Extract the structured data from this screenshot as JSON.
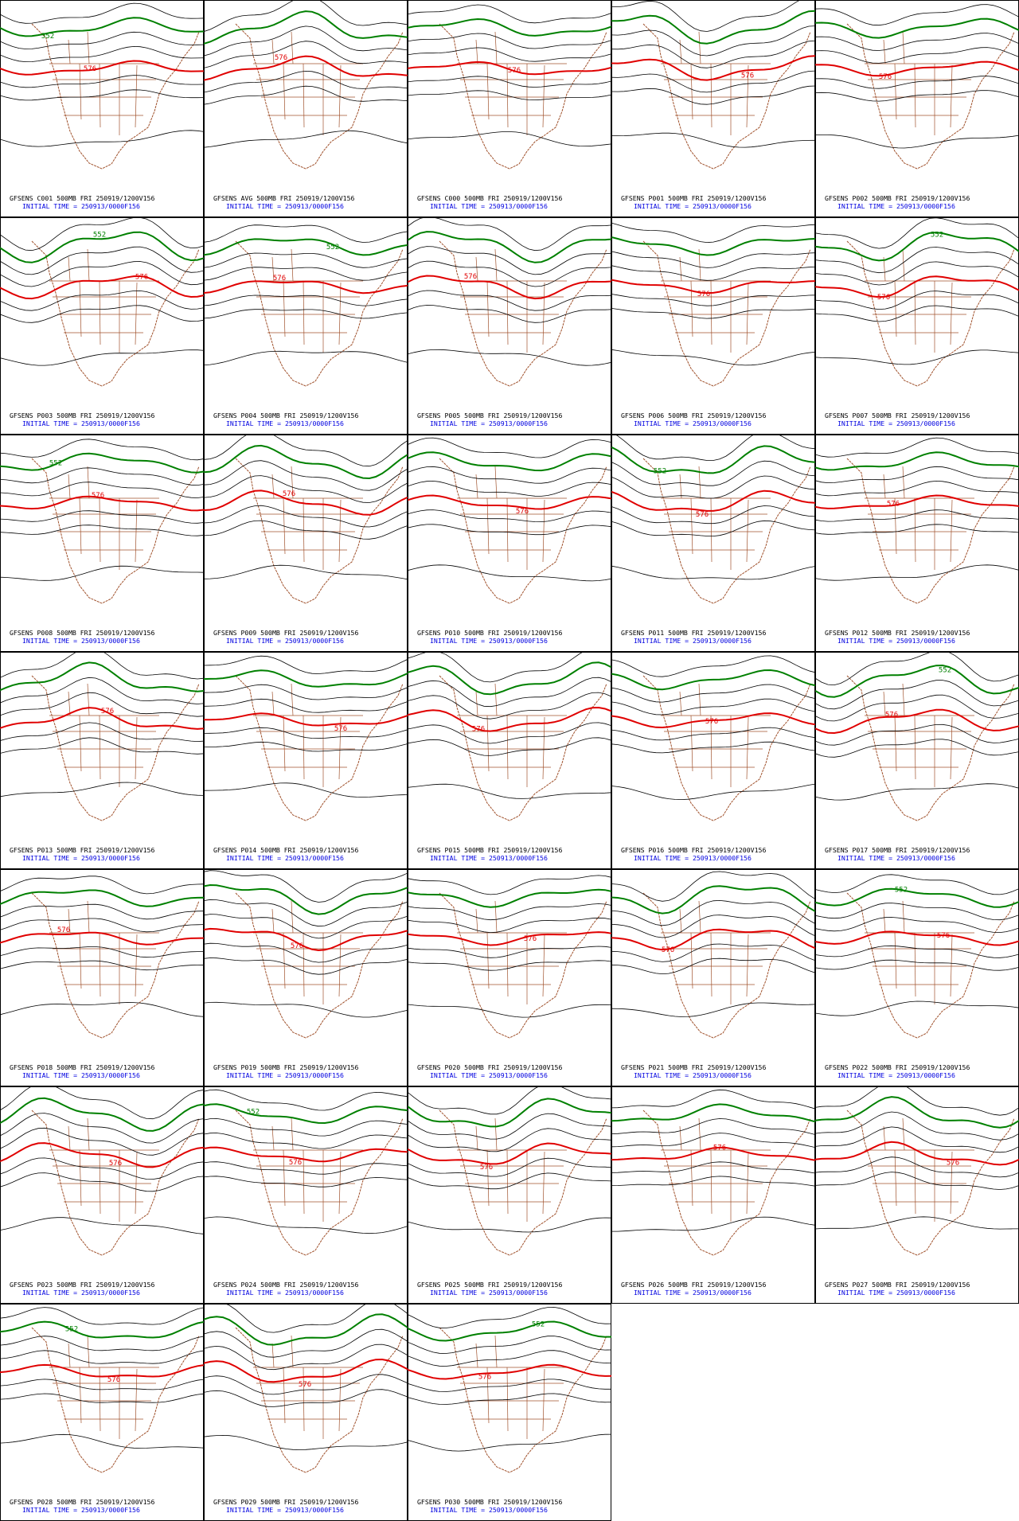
{
  "panels": [
    {
      "title": "GFSENS C001 500MB FRI 250919/1200V156",
      "subtitle": "INITIAL TIME = 250913/0000F156",
      "labels": [
        "552",
        "576"
      ]
    },
    {
      "title": "GFSENS AVG 500MB FRI 250919/1200V156",
      "subtitle": "INITIAL TIME = 250913/0000F156",
      "labels": [
        "576"
      ]
    },
    {
      "title": "GFSENS C000 500MB FRI 250919/1200V156",
      "subtitle": "INITIAL TIME = 250913/0000F156",
      "labels": [
        "576"
      ]
    },
    {
      "title": "GFSENS P001 500MB FRI 250919/1200V156",
      "subtitle": "INITIAL TIME = 250913/0000F156",
      "labels": [
        "576"
      ]
    },
    {
      "title": "GFSENS P002 500MB FRI 250919/1200V156",
      "subtitle": "INITIAL TIME = 250913/0000F156",
      "labels": [
        "576"
      ]
    },
    {
      "title": "GFSENS P003 500MB FRI 250919/1200V156",
      "subtitle": "INITIAL TIME = 250913/0000F156",
      "labels": [
        "552",
        "576"
      ]
    },
    {
      "title": "GFSENS P004 500MB FRI 250919/1200V156",
      "subtitle": "INITIAL TIME = 250913/0000F156",
      "labels": [
        "552",
        "576"
      ]
    },
    {
      "title": "GFSENS P005 500MB FRI 250919/1200V156",
      "subtitle": "INITIAL TIME = 250913/0000F156",
      "labels": [
        "576"
      ]
    },
    {
      "title": "GFSENS P006 500MB FRI 250919/1200V156",
      "subtitle": "INITIAL TIME = 250913/0000F156",
      "labels": [
        "576"
      ]
    },
    {
      "title": "GFSENS P007 500MB FRI 250919/1200V156",
      "subtitle": "INITIAL TIME = 250913/0000F156",
      "labels": [
        "552",
        "576"
      ]
    },
    {
      "title": "GFSENS P008 500MB FRI 250919/1200V156",
      "subtitle": "INITIAL TIME = 250913/0000F156",
      "labels": [
        "552",
        "576"
      ]
    },
    {
      "title": "GFSENS P009 500MB FRI 250919/1200V156",
      "subtitle": "INITIAL TIME = 250913/0000F156",
      "labels": [
        "576"
      ]
    },
    {
      "title": "GFSENS P010 500MB FRI 250919/1200V156",
      "subtitle": "INITIAL TIME = 250913/0000F156",
      "labels": [
        "576"
      ]
    },
    {
      "title": "GFSENS P011 500MB FRI 250919/1200V156",
      "subtitle": "INITIAL TIME = 250913/0000F156",
      "labels": [
        "552",
        "576"
      ]
    },
    {
      "title": "GFSENS P012 500MB FRI 250919/1200V156",
      "subtitle": "INITIAL TIME = 250913/0000F156",
      "labels": [
        "576"
      ]
    },
    {
      "title": "GFSENS P013 500MB FRI 250919/1200V156",
      "subtitle": "INITIAL TIME = 250913/0000F156",
      "labels": [
        "576"
      ]
    },
    {
      "title": "GFSENS P014 500MB FRI 250919/1200V156",
      "subtitle": "INITIAL TIME = 250913/0000F156",
      "labels": [
        "576"
      ]
    },
    {
      "title": "GFSENS P015 500MB FRI 250919/1200V156",
      "subtitle": "INITIAL TIME = 250913/0000F156",
      "labels": [
        "576"
      ]
    },
    {
      "title": "GFSENS P016 500MB FRI 250919/1200V156",
      "subtitle": "INITIAL TIME = 250913/0000F156",
      "labels": [
        "576"
      ]
    },
    {
      "title": "GFSENS P017 500MB FRI 250919/1200V156",
      "subtitle": "INITIAL TIME = 250913/0000F156",
      "labels": [
        "552",
        "576"
      ]
    },
    {
      "title": "GFSENS P018 500MB FRI 250919/1200V156",
      "subtitle": "INITIAL TIME = 250913/0000F156",
      "labels": [
        "576"
      ]
    },
    {
      "title": "GFSENS P019 500MB FRI 250919/1200V156",
      "subtitle": "INITIAL TIME = 250913/0000F156",
      "labels": [
        "576"
      ]
    },
    {
      "title": "GFSENS P020 500MB FRI 250919/1200V156",
      "subtitle": "INITIAL TIME = 250913/0000F156",
      "labels": [
        "576"
      ]
    },
    {
      "title": "GFSENS P021 500MB FRI 250919/1200V156",
      "subtitle": "INITIAL TIME = 250913/0000F156",
      "labels": [
        "576"
      ]
    },
    {
      "title": "GFSENS P022 500MB FRI 250919/1200V156",
      "subtitle": "INITIAL TIME = 250913/0000F156",
      "labels": [
        "552",
        "576"
      ]
    },
    {
      "title": "GFSENS P023 500MB FRI 250919/1200V156",
      "subtitle": "INITIAL TIME = 250913/0000F156",
      "labels": [
        "576"
      ]
    },
    {
      "title": "GFSENS P024 500MB FRI 250919/1200V156",
      "subtitle": "INITIAL TIME = 250913/0000F156",
      "labels": [
        "552",
        "576"
      ]
    },
    {
      "title": "GFSENS P025 500MB FRI 250919/1200V156",
      "subtitle": "INITIAL TIME = 250913/0000F156",
      "labels": [
        "576"
      ]
    },
    {
      "title": "GFSENS P026 500MB FRI 250919/1200V156",
      "subtitle": "INITIAL TIME = 250913/0000F156",
      "labels": [
        "576"
      ]
    },
    {
      "title": "GFSENS P027 500MB FRI 250919/1200V156",
      "subtitle": "INITIAL TIME = 250913/0000F156",
      "labels": [
        "576"
      ]
    },
    {
      "title": "GFSENS P028 500MB FRI 250919/1200V156",
      "subtitle": "INITIAL TIME = 250913/0000F156",
      "labels": [
        "552",
        "576"
      ]
    },
    {
      "title": "GFSENS P029 500MB FRI 250919/1200V156",
      "subtitle": "INITIAL TIME = 250913/0000F156",
      "labels": [
        "576"
      ]
    },
    {
      "title": "GFSENS P030 500MB FRI 250919/1200V156",
      "subtitle": "INITIAL TIME = 250913/0000F156",
      "labels": [
        "552",
        "576"
      ]
    }
  ]
}
